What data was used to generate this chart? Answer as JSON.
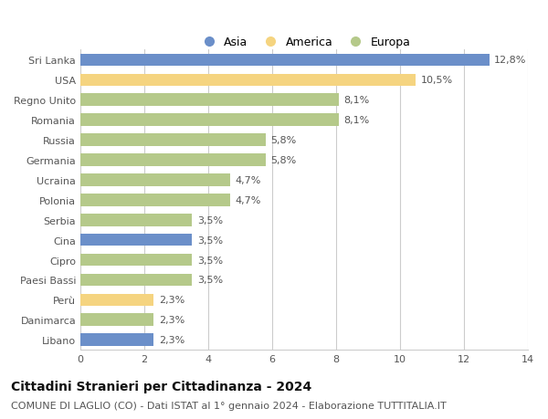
{
  "categories": [
    "Sri Lanka",
    "USA",
    "Regno Unito",
    "Romania",
    "Russia",
    "Germania",
    "Ucraina",
    "Polonia",
    "Serbia",
    "Cina",
    "Cipro",
    "Paesi Bassi",
    "Perù",
    "Danimarca",
    "Libano"
  ],
  "values": [
    12.8,
    10.5,
    8.1,
    8.1,
    5.8,
    5.8,
    4.7,
    4.7,
    3.5,
    3.5,
    3.5,
    3.5,
    2.3,
    2.3,
    2.3
  ],
  "labels": [
    "12,8%",
    "10,5%",
    "8,1%",
    "8,1%",
    "5,8%",
    "5,8%",
    "4,7%",
    "4,7%",
    "3,5%",
    "3,5%",
    "3,5%",
    "3,5%",
    "2,3%",
    "2,3%",
    "2,3%"
  ],
  "continents": [
    "Asia",
    "America",
    "Europa",
    "Europa",
    "Europa",
    "Europa",
    "Europa",
    "Europa",
    "Europa",
    "Asia",
    "Europa",
    "Europa",
    "America",
    "Europa",
    "Asia"
  ],
  "colors": {
    "Asia": "#6b8fc9",
    "America": "#f5d480",
    "Europa": "#b5c98a"
  },
  "legend_labels": [
    "Asia",
    "America",
    "Europa"
  ],
  "legend_colors": [
    "#6b8fc9",
    "#f5d480",
    "#b5c98a"
  ],
  "xlim": [
    0,
    14
  ],
  "xticks": [
    0,
    2,
    4,
    6,
    8,
    10,
    12,
    14
  ],
  "title": "Cittadini Stranieri per Cittadinanza - 2024",
  "subtitle": "COMUNE DI LAGLIO (CO) - Dati ISTAT al 1° gennaio 2024 - Elaborazione TUTTITALIA.IT",
  "background_color": "#ffffff",
  "grid_color": "#cccccc",
  "bar_height": 0.62,
  "label_fontsize": 8,
  "ytick_fontsize": 8,
  "xtick_fontsize": 8,
  "title_fontsize": 10,
  "subtitle_fontsize": 8
}
